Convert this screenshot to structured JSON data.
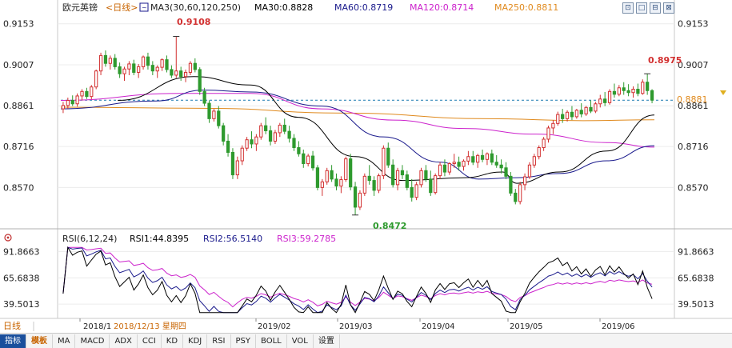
{
  "header": {
    "symbol": "欧元英镑",
    "period": "<日线>",
    "ma_label": "MA3(30,60,120,250)",
    "ma30": "MA30:0.8828",
    "ma60": "MA60:0.8719",
    "ma120": "MA120:0.8714",
    "ma250": "MA250:0.8811"
  },
  "window_buttons": [
    "⊡",
    "□",
    "⊟",
    "⊠"
  ],
  "colors": {
    "up": "#d23030",
    "down": "#2e9a2e",
    "ma30": "#000000",
    "ma60": "#1a1a8c",
    "ma120": "#cc22cc",
    "ma250": "#e08a1e",
    "last_price": "#1a7ab0",
    "rsi1": "#000000",
    "rsi2": "#1a1a8c",
    "rsi3": "#cc22cc"
  },
  "price_axis": {
    "ticks": [
      "0.9153",
      "0.9007",
      "0.8861",
      "0.8716",
      "0.8570"
    ],
    "ylim": [
      0.844,
      0.9175
    ]
  },
  "last_price": "0.8881",
  "annotations": {
    "high": "0.9108",
    "low": "0.8472",
    "recent_high": "0.8975"
  },
  "rsi": {
    "label": "RSI(6,12,24)",
    "rsi1": "RSI1:44.8395",
    "rsi2": "RSI2:56.5140",
    "rsi3": "RSI3:59.2785",
    "ticks": [
      "91.8663",
      "65.6838",
      "39.5013"
    ],
    "ylim": [
      30,
      97
    ]
  },
  "time_axis": {
    "period_tag": "日线",
    "labels": [
      "2018/1",
      "2018/12/13 星期四",
      "2019/02",
      "2019/03",
      "2019/04",
      "2019/05",
      "2019/06"
    ]
  },
  "bottom_tabs": [
    "指标",
    "模板",
    "MA",
    "MACD",
    "ADX",
    "CCI",
    "KD",
    "KDJ",
    "RSI",
    "PSY",
    "BOLL",
    "VOL",
    "设置"
  ],
  "chart_data": {
    "type": "candlestick",
    "title": "欧元英镑 <日线>",
    "ohlc": [
      [
        0.885,
        0.8875,
        0.8835,
        0.8862
      ],
      [
        0.8862,
        0.889,
        0.885,
        0.888
      ],
      [
        0.888,
        0.8898,
        0.886,
        0.8868
      ],
      [
        0.8868,
        0.8905,
        0.8858,
        0.8896
      ],
      [
        0.8896,
        0.892,
        0.888,
        0.8912
      ],
      [
        0.8912,
        0.8925,
        0.8885,
        0.8894
      ],
      [
        0.8894,
        0.8935,
        0.8884,
        0.8928
      ],
      [
        0.8928,
        0.899,
        0.892,
        0.8985
      ],
      [
        0.8985,
        0.905,
        0.897,
        0.904
      ],
      [
        0.904,
        0.9058,
        0.9,
        0.9012
      ],
      [
        0.9012,
        0.904,
        0.899,
        0.903
      ],
      [
        0.903,
        0.9045,
        0.899,
        0.9
      ],
      [
        0.9,
        0.9015,
        0.896,
        0.8975
      ],
      [
        0.8975,
        0.9,
        0.895,
        0.8992
      ],
      [
        0.8992,
        0.902,
        0.897,
        0.901
      ],
      [
        0.901,
        0.9025,
        0.897,
        0.898
      ],
      [
        0.898,
        0.901,
        0.896,
        0.9
      ],
      [
        0.9,
        0.904,
        0.899,
        0.9035
      ],
      [
        0.9035,
        0.905,
        0.899,
        0.9005
      ],
      [
        0.9005,
        0.902,
        0.897,
        0.8985
      ],
      [
        0.8985,
        0.9005,
        0.896,
        0.8998
      ],
      [
        0.8998,
        0.903,
        0.8985,
        0.9025
      ],
      [
        0.9025,
        0.904,
        0.898,
        0.899
      ],
      [
        0.899,
        0.9005,
        0.896,
        0.897
      ],
      [
        0.897,
        0.9108,
        0.896,
        0.8985
      ],
      [
        0.8985,
        0.9,
        0.895,
        0.8965
      ],
      [
        0.8965,
        0.899,
        0.8945,
        0.898
      ],
      [
        0.898,
        0.902,
        0.897,
        0.9012
      ],
      [
        0.9012,
        0.903,
        0.898,
        0.899
      ],
      [
        0.899,
        0.8998,
        0.89,
        0.8912
      ],
      [
        0.8912,
        0.8925,
        0.886,
        0.887
      ],
      [
        0.887,
        0.888,
        0.88,
        0.8815
      ],
      [
        0.8815,
        0.885,
        0.8805,
        0.8842
      ],
      [
        0.8842,
        0.886,
        0.878,
        0.879
      ],
      [
        0.879,
        0.88,
        0.872,
        0.8735
      ],
      [
        0.8735,
        0.876,
        0.868,
        0.8695
      ],
      [
        0.8695,
        0.871,
        0.86,
        0.8615
      ],
      [
        0.8615,
        0.868,
        0.86,
        0.8665
      ],
      [
        0.8665,
        0.872,
        0.865,
        0.871
      ],
      [
        0.871,
        0.875,
        0.87,
        0.874
      ],
      [
        0.874,
        0.877,
        0.871,
        0.8725
      ],
      [
        0.8725,
        0.876,
        0.87,
        0.875
      ],
      [
        0.875,
        0.88,
        0.874,
        0.879
      ],
      [
        0.879,
        0.882,
        0.876,
        0.8772
      ],
      [
        0.8772,
        0.879,
        0.872,
        0.8735
      ],
      [
        0.8735,
        0.8775,
        0.8725,
        0.8765
      ],
      [
        0.8765,
        0.88,
        0.875,
        0.8792
      ],
      [
        0.8792,
        0.8815,
        0.876,
        0.877
      ],
      [
        0.877,
        0.879,
        0.873,
        0.8745
      ],
      [
        0.8745,
        0.876,
        0.87,
        0.8712
      ],
      [
        0.8712,
        0.8735,
        0.868,
        0.869
      ],
      [
        0.869,
        0.8705,
        0.864,
        0.8655
      ],
      [
        0.8655,
        0.869,
        0.8645,
        0.8682
      ],
      [
        0.8682,
        0.87,
        0.863,
        0.864
      ],
      [
        0.864,
        0.865,
        0.856,
        0.857
      ],
      [
        0.857,
        0.86,
        0.854,
        0.859
      ],
      [
        0.859,
        0.864,
        0.858,
        0.863
      ],
      [
        0.863,
        0.865,
        0.859,
        0.86
      ],
      [
        0.86,
        0.862,
        0.856,
        0.8575
      ],
      [
        0.8575,
        0.861,
        0.855,
        0.8598
      ],
      [
        0.8598,
        0.868,
        0.859,
        0.8672
      ],
      [
        0.8672,
        0.869,
        0.856,
        0.8572
      ],
      [
        0.8572,
        0.859,
        0.8472,
        0.85
      ],
      [
        0.85,
        0.856,
        0.849,
        0.855
      ],
      [
        0.855,
        0.862,
        0.854,
        0.861
      ],
      [
        0.861,
        0.865,
        0.858,
        0.8595
      ],
      [
        0.8595,
        0.861,
        0.854,
        0.856
      ],
      [
        0.856,
        0.862,
        0.855,
        0.8612
      ],
      [
        0.8612,
        0.872,
        0.86,
        0.871
      ],
      [
        0.871,
        0.873,
        0.864,
        0.865
      ],
      [
        0.865,
        0.867,
        0.857,
        0.858
      ],
      [
        0.858,
        0.864,
        0.856,
        0.863
      ],
      [
        0.863,
        0.865,
        0.86,
        0.8615
      ],
      [
        0.8615,
        0.863,
        0.856,
        0.857
      ],
      [
        0.857,
        0.86,
        0.852,
        0.8535
      ],
      [
        0.8535,
        0.859,
        0.8525,
        0.858
      ],
      [
        0.858,
        0.864,
        0.857,
        0.863
      ],
      [
        0.863,
        0.865,
        0.859,
        0.86
      ],
      [
        0.86,
        0.863,
        0.854,
        0.8552
      ],
      [
        0.8552,
        0.862,
        0.8545,
        0.8612
      ],
      [
        0.8612,
        0.866,
        0.86,
        0.865
      ],
      [
        0.865,
        0.867,
        0.861,
        0.8625
      ],
      [
        0.8625,
        0.866,
        0.8615,
        0.8655
      ],
      [
        0.8655,
        0.869,
        0.864,
        0.866
      ],
      [
        0.866,
        0.868,
        0.863,
        0.8645
      ],
      [
        0.8645,
        0.867,
        0.863,
        0.8664
      ],
      [
        0.8664,
        0.87,
        0.865,
        0.868
      ],
      [
        0.868,
        0.87,
        0.865,
        0.866
      ],
      [
        0.866,
        0.869,
        0.864,
        0.8684
      ],
      [
        0.8684,
        0.8705,
        0.866,
        0.867
      ],
      [
        0.867,
        0.8695,
        0.865,
        0.869
      ],
      [
        0.869,
        0.8705,
        0.865,
        0.866
      ],
      [
        0.866,
        0.8685,
        0.864,
        0.865
      ],
      [
        0.865,
        0.867,
        0.862,
        0.864
      ],
      [
        0.864,
        0.866,
        0.86,
        0.861
      ],
      [
        0.861,
        0.8625,
        0.854,
        0.855
      ],
      [
        0.855,
        0.8565,
        0.851,
        0.852
      ],
      [
        0.852,
        0.859,
        0.851,
        0.858
      ],
      [
        0.858,
        0.862,
        0.856,
        0.8608
      ],
      [
        0.8608,
        0.866,
        0.86,
        0.865
      ],
      [
        0.865,
        0.869,
        0.864,
        0.868
      ],
      [
        0.868,
        0.872,
        0.867,
        0.8712
      ],
      [
        0.8712,
        0.875,
        0.87,
        0.8742
      ],
      [
        0.8742,
        0.879,
        0.873,
        0.8782
      ],
      [
        0.8782,
        0.881,
        0.876,
        0.8798
      ],
      [
        0.8798,
        0.884,
        0.879,
        0.883
      ],
      [
        0.883,
        0.885,
        0.88,
        0.8815
      ],
      [
        0.8815,
        0.8845,
        0.8805,
        0.8838
      ],
      [
        0.8838,
        0.886,
        0.881,
        0.8822
      ],
      [
        0.8822,
        0.885,
        0.8815,
        0.8845
      ],
      [
        0.8845,
        0.887,
        0.882,
        0.8832
      ],
      [
        0.8832,
        0.886,
        0.8825,
        0.8855
      ],
      [
        0.8855,
        0.888,
        0.8835,
        0.8842
      ],
      [
        0.8842,
        0.8875,
        0.8835,
        0.8868
      ],
      [
        0.8868,
        0.89,
        0.8855,
        0.8885
      ],
      [
        0.8885,
        0.891,
        0.886,
        0.8872
      ],
      [
        0.8872,
        0.892,
        0.8865,
        0.8912
      ],
      [
        0.8912,
        0.894,
        0.889,
        0.8902
      ],
      [
        0.8902,
        0.8935,
        0.8895,
        0.8925
      ],
      [
        0.8925,
        0.8945,
        0.89,
        0.8915
      ],
      [
        0.8915,
        0.8938,
        0.8895,
        0.8908
      ],
      [
        0.8908,
        0.893,
        0.889,
        0.892
      ],
      [
        0.892,
        0.894,
        0.8895,
        0.8905
      ],
      [
        0.8905,
        0.8955,
        0.89,
        0.8945
      ],
      [
        0.8945,
        0.8975,
        0.89,
        0.8915
      ],
      [
        0.8915,
        0.892,
        0.887,
        0.8881
      ]
    ],
    "ma30": {
      "start": 0.8838,
      "pts": [
        [
          0.12,
          0.888
        ],
        [
          0.28,
          0.8965
        ],
        [
          0.4,
          0.8935
        ],
        [
          0.5,
          0.882
        ],
        [
          0.62,
          0.868
        ],
        [
          0.72,
          0.8595
        ],
        [
          0.85,
          0.8605
        ],
        [
          0.93,
          0.8625
        ],
        [
          0.96,
          0.8585
        ],
        [
          1.05,
          0.8625
        ],
        [
          1.15,
          0.87
        ],
        [
          1.25,
          0.8828
        ]
      ]
    },
    "ma60": {
      "pts": [
        [
          0.0,
          0.885
        ],
        [
          0.2,
          0.8878
        ],
        [
          0.3,
          0.8917
        ],
        [
          0.4,
          0.891
        ],
        [
          0.55,
          0.886
        ],
        [
          0.68,
          0.875
        ],
        [
          0.8,
          0.866
        ],
        [
          0.88,
          0.86
        ],
        [
          0.96,
          0.8605
        ],
        [
          1.05,
          0.862
        ],
        [
          1.15,
          0.8665
        ],
        [
          1.25,
          0.8719
        ]
      ]
    },
    "ma120": {
      "pts": [
        [
          0.0,
          0.888
        ],
        [
          0.25,
          0.8905
        ],
        [
          0.4,
          0.8905
        ],
        [
          0.55,
          0.885
        ],
        [
          0.7,
          0.881
        ],
        [
          0.85,
          0.878
        ],
        [
          1.0,
          0.876
        ],
        [
          1.15,
          0.873
        ],
        [
          1.25,
          0.8714
        ]
      ]
    },
    "ma250": {
      "pts": [
        [
          0.0,
          0.8856
        ],
        [
          0.3,
          0.8852
        ],
        [
          0.6,
          0.8835
        ],
        [
          0.9,
          0.8815
        ],
        [
          1.1,
          0.8808
        ],
        [
          1.25,
          0.8811
        ]
      ]
    },
    "rsi1_last": 44.8395,
    "rsi2_last": 56.514,
    "rsi3_last": 59.2785
  }
}
